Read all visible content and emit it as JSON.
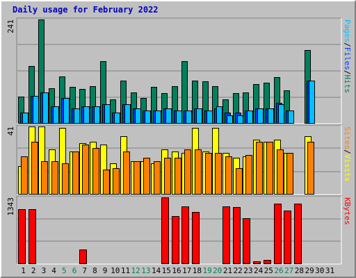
{
  "chart_data": {
    "title": "Daily usage for February 2022",
    "type": "bar",
    "categories": [
      "1",
      "2",
      "3",
      "4",
      "5",
      "6",
      "7",
      "8",
      "9",
      "10",
      "11",
      "12",
      "13",
      "14",
      "15",
      "16",
      "17",
      "18",
      "19",
      "20",
      "21",
      "22",
      "23",
      "24",
      "25",
      "26",
      "27",
      "28",
      "29",
      "30",
      "31"
    ],
    "weekend_days": [
      "5",
      "6",
      "12",
      "13",
      "19",
      "20",
      "26",
      "27"
    ],
    "panels": [
      {
        "ylabel_top": "241",
        "right_label": [
          {
            "text": "Pages",
            "color": "#00c0ff"
          },
          {
            "text": "/",
            "color": "#000000"
          },
          {
            "text": "Files",
            "color": "#0040ff"
          },
          {
            "text": "/",
            "color": "#000000"
          },
          {
            "text": "Hits",
            "color": "#00805c"
          }
        ],
        "ymax": 241,
        "series": [
          {
            "name": "Hits",
            "color": "#00805c",
            "values": [
              62,
              134,
              241,
              82,
              109,
              85,
              80,
              87,
              145,
              57,
              100,
              72,
              60,
              85,
              70,
              87,
              145,
              100,
              98,
              87,
              57,
              70,
              72,
              92,
              95,
              108,
              77,
              0,
              170,
              0,
              0
            ]
          },
          {
            "name": "Files",
            "color": "#0040ff",
            "values": [
              25,
              65,
              73,
              40,
              60,
              35,
              40,
              40,
              45,
              25,
              45,
              35,
              30,
              30,
              35,
              30,
              30,
              35,
              30,
              35,
              25,
              25,
              30,
              35,
              35,
              48,
              30,
              0,
              100,
              0,
              0
            ]
          },
          {
            "name": "Pages",
            "color": "#00c0ff",
            "values": [
              25,
              65,
              73,
              40,
              60,
              35,
              40,
              40,
              45,
              25,
              45,
              35,
              30,
              30,
              35,
              30,
              30,
              35,
              30,
              40,
              20,
              20,
              30,
              35,
              35,
              45,
              30,
              0,
              100,
              0,
              0
            ]
          }
        ]
      },
      {
        "ylabel_top": "41",
        "right_label": [
          {
            "text": "Sites",
            "color": "#ff8000"
          },
          {
            "text": "/",
            "color": "#000000"
          },
          {
            "text": "Visits",
            "color": "#ffff00"
          }
        ],
        "ymax": 41,
        "series": [
          {
            "name": "Visits",
            "color": "#ffff00",
            "values": [
              17,
              41,
              41,
              27,
              40,
              26,
              31,
              32,
              30,
              19,
              35,
              20,
              20,
              19,
              27,
              26,
              25,
              40,
              26,
              40,
              25,
              22,
              23,
              33,
              32,
              33,
              25,
              0,
              35,
              0,
              0
            ]
          },
          {
            "name": "Sites",
            "color": "#ff8000",
            "values": [
              23,
              32,
              20,
              20,
              19,
              26,
              30,
              28,
              15,
              16,
              26,
              20,
              22,
              20,
              22,
              22,
              27,
              27,
              25,
              25,
              23,
              16,
              24,
              32,
              32,
              27,
              25,
              0,
              32,
              0,
              0
            ]
          }
        ]
      },
      {
        "ylabel_top": "1343",
        "right_label": [
          {
            "text": "KBytes",
            "color": "#ff0000"
          }
        ],
        "ymax": 1343,
        "series": [
          {
            "name": "KBytes",
            "color": "#ff0000",
            "values": [
              1100,
              1100,
              10,
              10,
              10,
              10,
              290,
              10,
              10,
              10,
              10,
              10,
              10,
              10,
              1343,
              970,
              1165,
              1050,
              15,
              15,
              1165,
              1150,
              920,
              50,
              90,
              1220,
              1080,
              1220,
              0,
              0,
              0
            ]
          }
        ]
      }
    ]
  }
}
